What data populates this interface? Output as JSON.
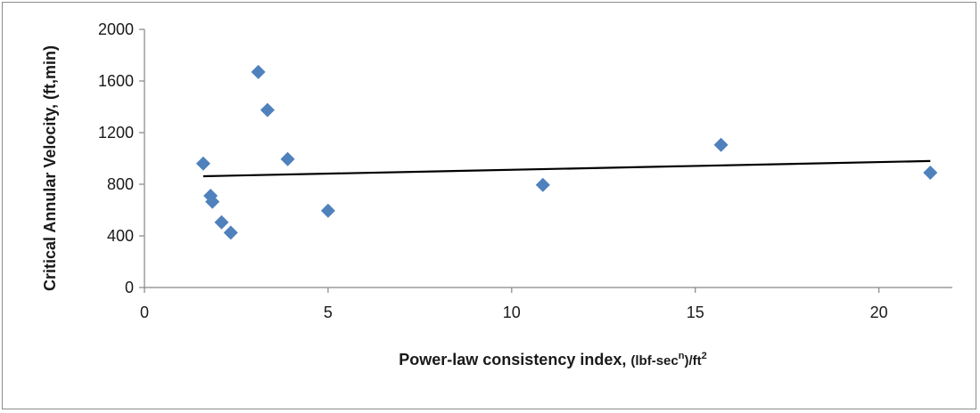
{
  "chart_data": {
    "type": "scatter",
    "xlabel_main": "Power-law consistency index,",
    "xlabel_unit_a": "(lbf-sec",
    "xlabel_unit_sup": "n",
    "xlabel_unit_b": ")/ft",
    "xlabel_unit_sup2": "2",
    "ylabel": "Critical Annular Velocity, (ft,min)",
    "xlim": [
      0,
      22
    ],
    "ylim": [
      0,
      2000
    ],
    "xticks": [
      0,
      5,
      10,
      15,
      20
    ],
    "yticks": [
      0,
      400,
      800,
      1200,
      1600,
      2000
    ],
    "grid": false,
    "marker_color": "#4f81bd",
    "trendline_color": "#000000",
    "points": [
      {
        "x": 1.6,
        "y": 960
      },
      {
        "x": 1.8,
        "y": 710
      },
      {
        "x": 1.85,
        "y": 665
      },
      {
        "x": 2.1,
        "y": 505
      },
      {
        "x": 2.35,
        "y": 425
      },
      {
        "x": 3.1,
        "y": 1670
      },
      {
        "x": 3.35,
        "y": 1375
      },
      {
        "x": 3.9,
        "y": 995
      },
      {
        "x": 5.0,
        "y": 595
      },
      {
        "x": 10.85,
        "y": 795
      },
      {
        "x": 15.7,
        "y": 1105
      },
      {
        "x": 21.4,
        "y": 890
      }
    ],
    "trendline": {
      "x": [
        1.6,
        21.4
      ],
      "y": [
        862,
        980
      ]
    }
  }
}
